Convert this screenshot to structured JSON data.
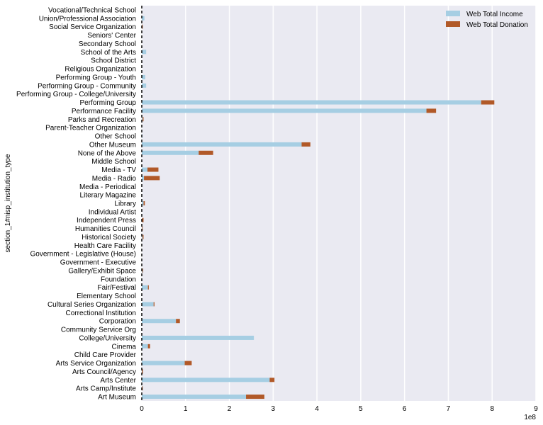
{
  "chart_data": {
    "type": "bar",
    "orientation": "horizontal",
    "stacked": true,
    "ylabel": "section_1#nisp_institution_type",
    "xlabel": "",
    "x_offset_label": "1e8",
    "xlim": [
      0,
      9
    ],
    "xticks": [
      0,
      1,
      2,
      3,
      4,
      5,
      6,
      7,
      8,
      9
    ],
    "grid": true,
    "legend_position": "top-right",
    "categories": [
      "Art Museum",
      "Arts Camp/Institute",
      "Arts Center",
      "Arts Council/Agency",
      "Arts Service Organization",
      "Child Care Provider",
      "Cinema",
      "College/University",
      "Community Service Org",
      "Corporation",
      "Correctional Institution",
      "Cultural Series Organization",
      "Elementary School",
      "Fair/Festival",
      "Foundation",
      "Gallery/Exhibit Space",
      "Government - Executive",
      "Government - Legislative (House)",
      "Health Care Facility",
      "Historical Society",
      "Humanities Council",
      "Independent Press",
      "Individual Artist",
      "Library",
      "Literary Magazine",
      "Media - Periodical",
      "Media - Radio",
      "Media - TV",
      "Middle School",
      "None of the Above",
      "Other Museum",
      "Other School",
      "Parent-Teacher Organization",
      "Parks and Recreation",
      "Performance Facility",
      "Performing Group",
      "Performing Group - College/University",
      "Performing Group - Community",
      "Performing Group - Youth",
      "Religious Organization",
      "School District",
      "School of the Arts",
      "Secondary School",
      "Seniors' Center",
      "Social Service Organization",
      "Union/Professional Association",
      "Vocational/Technical School"
    ],
    "series": [
      {
        "name": "Web Total Income",
        "color": "#a6cee3",
        "values": [
          2.38,
          0.01,
          2.92,
          0.01,
          0.98,
          0.0,
          0.14,
          2.56,
          0.0,
          0.78,
          0.0,
          0.27,
          0.0,
          0.14,
          0.0,
          0.02,
          0.0,
          0.0,
          0.0,
          0.02,
          0.01,
          0.01,
          0.0,
          0.04,
          0.0,
          0.0,
          0.05,
          0.13,
          0.0,
          1.3,
          3.65,
          0.01,
          0.0,
          0.02,
          6.5,
          7.75,
          0.0,
          0.1,
          0.08,
          0.0,
          0.0,
          0.1,
          0.0,
          0.0,
          0.01,
          0.06,
          0.0
        ]
      },
      {
        "name": "Web Total Donation",
        "color": "#b15928",
        "values": [
          0.42,
          0.01,
          0.11,
          0.02,
          0.16,
          0.0,
          0.05,
          0.0,
          0.0,
          0.09,
          0.0,
          0.02,
          0.0,
          0.02,
          0.0,
          0.01,
          0.0,
          0.0,
          0.0,
          0.02,
          0.01,
          0.03,
          0.0,
          0.03,
          0.0,
          0.0,
          0.36,
          0.25,
          0.0,
          0.33,
          0.2,
          0.0,
          0.0,
          0.02,
          0.22,
          0.3,
          0.0,
          0.0,
          0.0,
          0.0,
          0.0,
          0.0,
          0.0,
          0.0,
          0.01,
          0.0,
          0.0
        ]
      }
    ],
    "reference_line": {
      "x": 0,
      "style": "dashed",
      "color": "#000000"
    },
    "colors": {
      "plot_background": "#eaeaf2",
      "grid": "#ffffff"
    }
  }
}
